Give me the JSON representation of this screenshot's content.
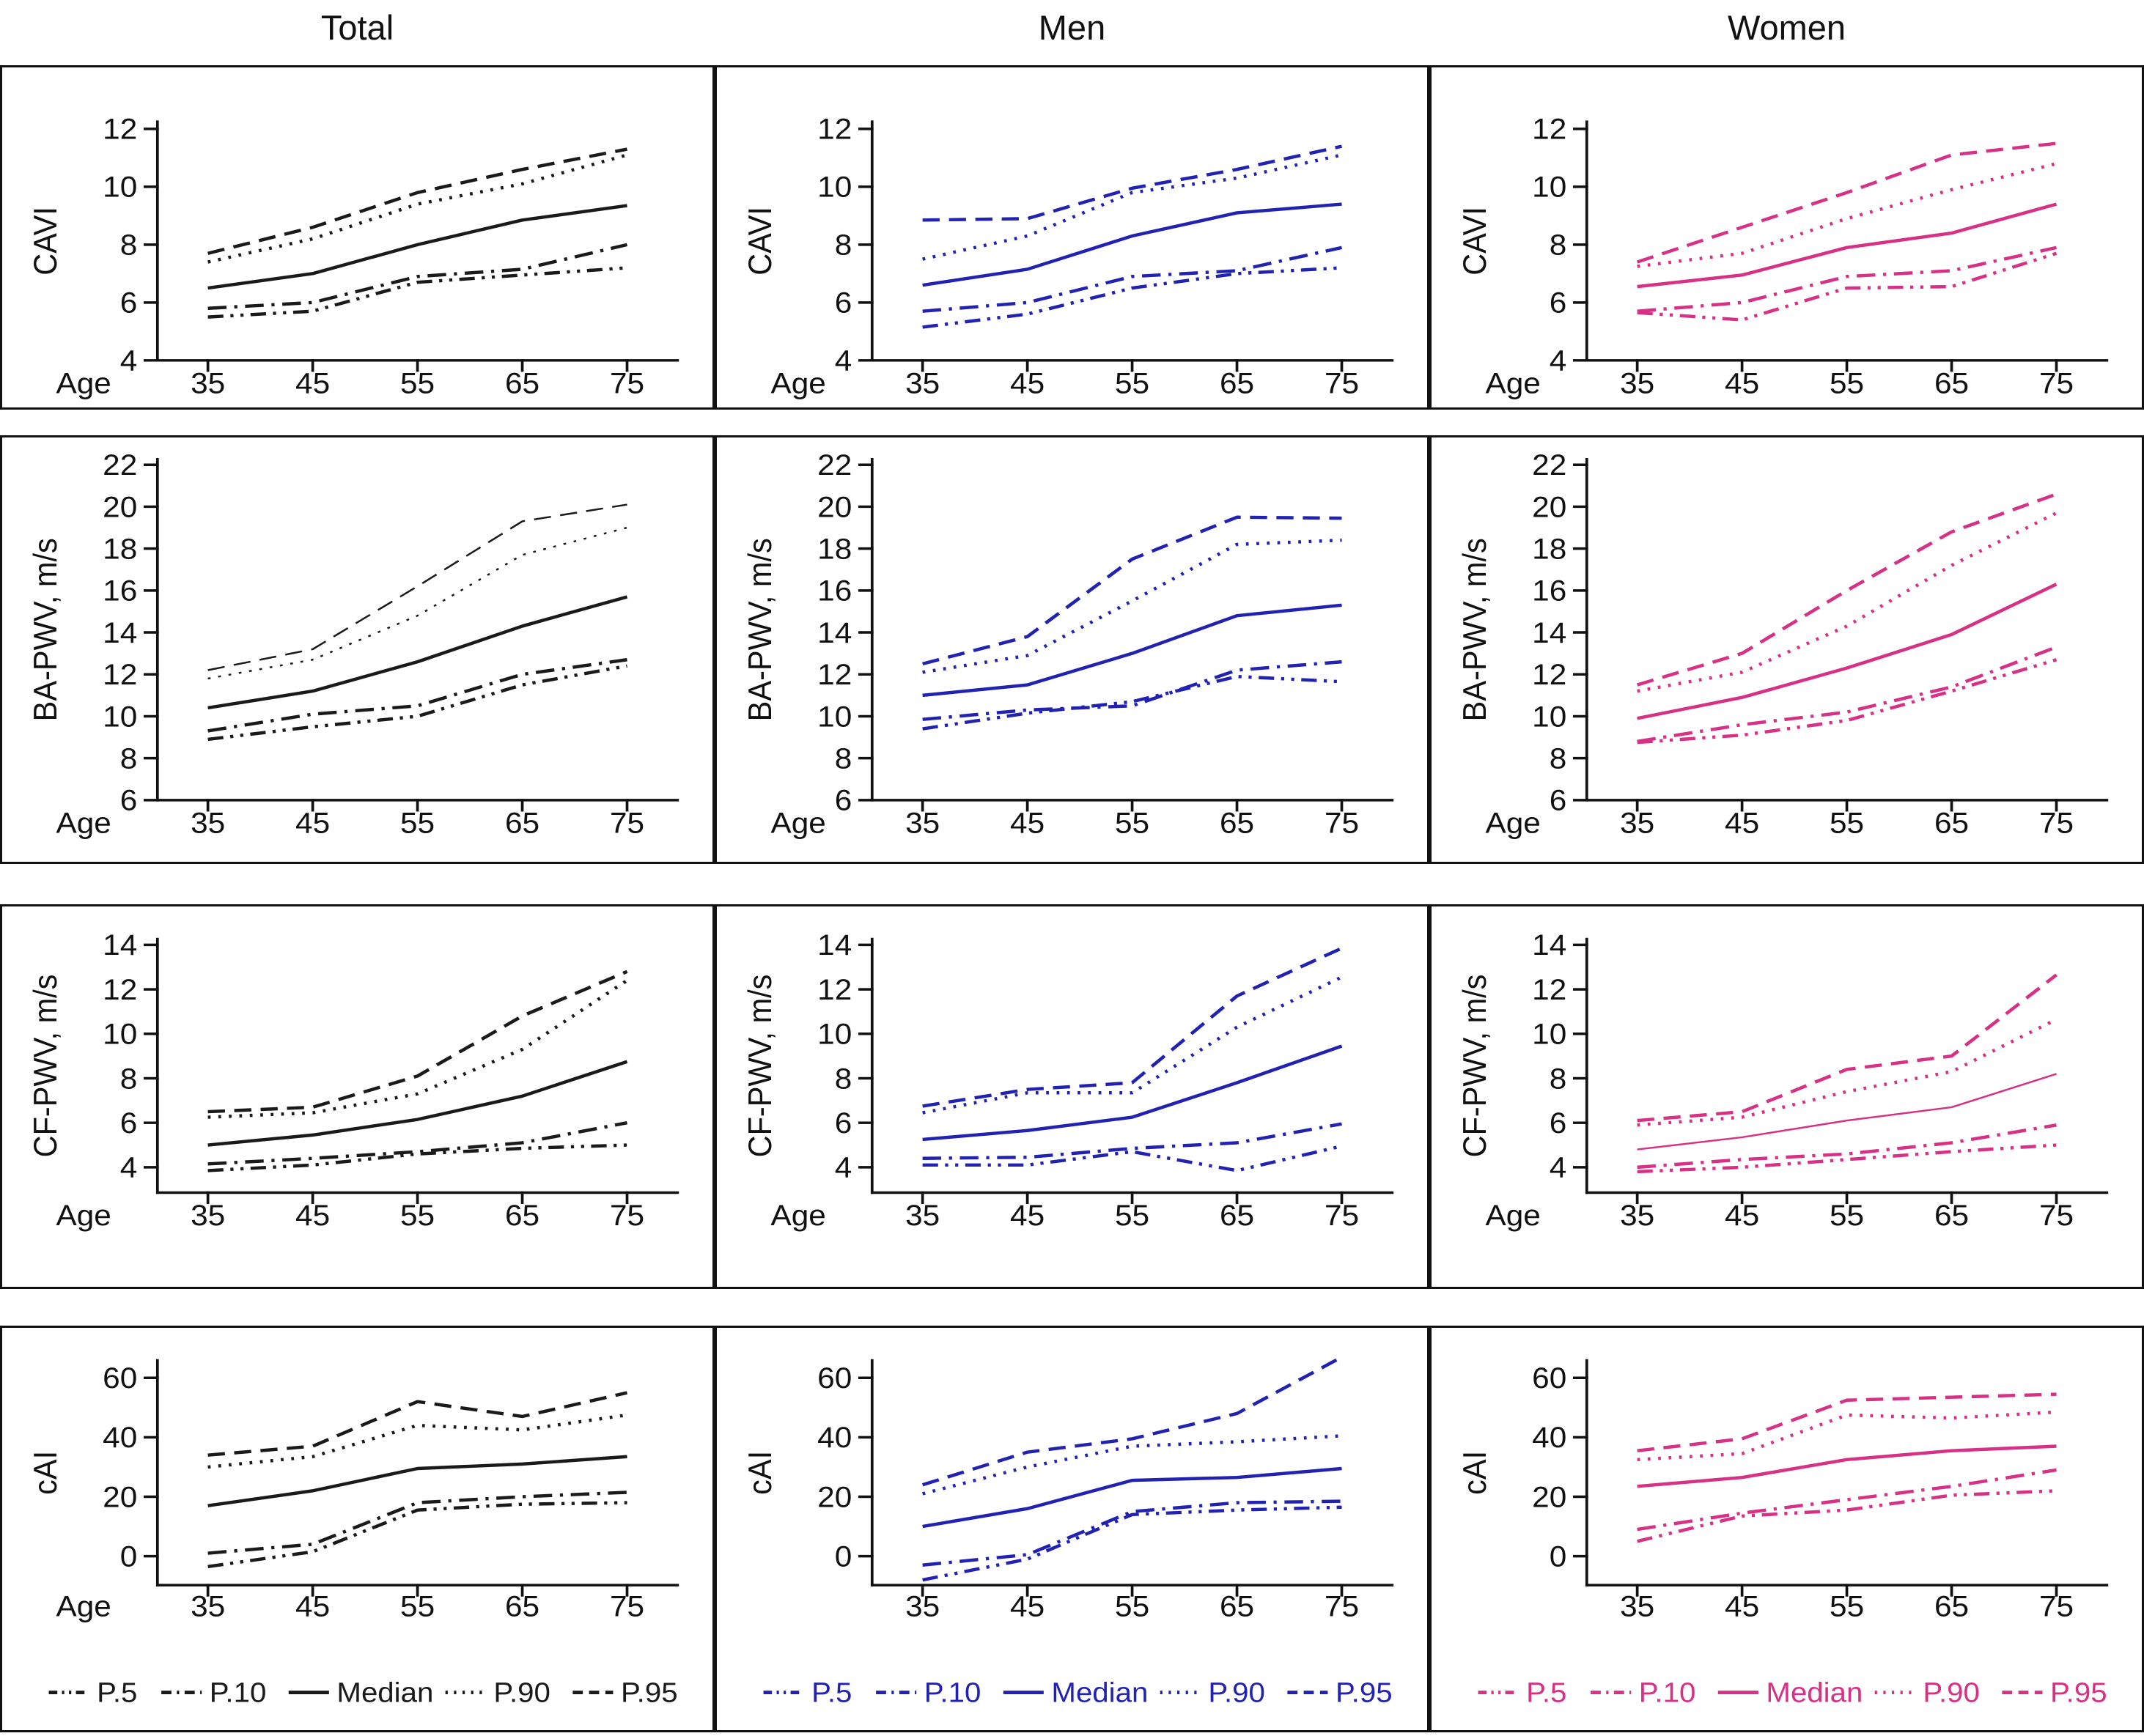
{
  "columns": [
    {
      "title": "Total",
      "color": "#1a1a1a"
    },
    {
      "title": "Men",
      "color": "#2222b2"
    },
    {
      "title": "Women",
      "color": "#d63184"
    }
  ],
  "x_axis": {
    "label": "Age",
    "ticks": [
      35,
      45,
      55,
      65,
      75
    ]
  },
  "legend": {
    "items": [
      {
        "label": "P.5",
        "style": "dash-dot-dot"
      },
      {
        "label": "P.10",
        "style": "dash-dot"
      },
      {
        "label": "Median",
        "style": "solid"
      },
      {
        "label": "P.90",
        "style": "dotted"
      },
      {
        "label": "P.95",
        "style": "dashed"
      }
    ]
  },
  "chart_data": [
    {
      "type": "line",
      "column": "Total",
      "measure": "CAVI",
      "ylabel": "CAVI",
      "yticks": [
        4,
        6,
        8,
        10,
        12
      ],
      "ylim": [
        4,
        12.4
      ],
      "x": [
        35,
        45,
        55,
        65,
        75
      ],
      "xlabel": "Age",
      "show_age_label": true,
      "show_legend": false,
      "series": [
        {
          "name": "P.5",
          "style": "dash-dot-dot",
          "values": [
            5.5,
            5.7,
            6.7,
            6.95,
            7.2
          ]
        },
        {
          "name": "P.10",
          "style": "dash-dot",
          "values": [
            5.8,
            6.0,
            6.9,
            7.15,
            8.0
          ]
        },
        {
          "name": "Median",
          "style": "solid",
          "values": [
            6.5,
            7.0,
            8.0,
            8.85,
            9.35
          ]
        },
        {
          "name": "P.90",
          "style": "dotted",
          "values": [
            7.4,
            8.2,
            9.4,
            10.1,
            11.1
          ]
        },
        {
          "name": "P.95",
          "style": "dashed",
          "values": [
            7.7,
            8.6,
            9.8,
            10.6,
            11.3
          ]
        }
      ]
    },
    {
      "type": "line",
      "column": "Men",
      "measure": "CAVI",
      "ylabel": "CAVI",
      "yticks": [
        4,
        6,
        8,
        10,
        12
      ],
      "ylim": [
        4,
        12.4
      ],
      "x": [
        35,
        45,
        55,
        65,
        75
      ],
      "xlabel": "Age",
      "show_age_label": true,
      "show_legend": false,
      "series": [
        {
          "name": "P.5",
          "style": "dash-dot-dot",
          "values": [
            5.15,
            5.6,
            6.5,
            7.0,
            7.2
          ]
        },
        {
          "name": "P.10",
          "style": "dash-dot",
          "values": [
            5.7,
            6.0,
            6.9,
            7.1,
            7.9
          ]
        },
        {
          "name": "Median",
          "style": "solid",
          "values": [
            6.6,
            7.15,
            8.3,
            9.1,
            9.4
          ]
        },
        {
          "name": "P.90",
          "style": "dotted",
          "values": [
            7.5,
            8.3,
            9.8,
            10.3,
            11.1
          ]
        },
        {
          "name": "P.95",
          "style": "dashed",
          "values": [
            8.85,
            8.9,
            9.95,
            10.6,
            11.4
          ]
        }
      ]
    },
    {
      "type": "line",
      "column": "Women",
      "measure": "CAVI",
      "ylabel": "CAVI",
      "yticks": [
        4,
        6,
        8,
        10,
        12
      ],
      "ylim": [
        4,
        12.4
      ],
      "x": [
        35,
        45,
        55,
        65,
        75
      ],
      "xlabel": "Age",
      "show_age_label": true,
      "show_legend": false,
      "series": [
        {
          "name": "P.5",
          "style": "dash-dot-dot",
          "values": [
            5.65,
            5.4,
            6.5,
            6.55,
            7.7
          ]
        },
        {
          "name": "P.10",
          "style": "dash-dot",
          "values": [
            5.7,
            6.0,
            6.9,
            7.1,
            7.9
          ]
        },
        {
          "name": "Median",
          "style": "solid",
          "values": [
            6.55,
            6.95,
            7.9,
            8.4,
            9.4
          ]
        },
        {
          "name": "P.90",
          "style": "dotted",
          "values": [
            7.25,
            7.7,
            8.9,
            9.9,
            10.8
          ]
        },
        {
          "name": "P.95",
          "style": "dashed",
          "values": [
            7.4,
            8.6,
            9.8,
            11.1,
            11.5
          ]
        }
      ]
    },
    {
      "type": "line",
      "column": "Total",
      "measure": "BA-PWV",
      "ylabel": "BA-PWV, m/s",
      "yticks": [
        6,
        8,
        10,
        12,
        14,
        16,
        18,
        20,
        22
      ],
      "ylim": [
        6,
        22.4
      ],
      "x": [
        35,
        45,
        55,
        65,
        75
      ],
      "xlabel": "Age",
      "show_age_label": true,
      "show_legend": false,
      "series": [
        {
          "name": "P.5",
          "style": "dash-dot-dot",
          "values": [
            8.9,
            9.5,
            10.0,
            11.5,
            12.4
          ]
        },
        {
          "name": "P.10",
          "style": "dash-dot",
          "values": [
            9.3,
            10.1,
            10.5,
            12.0,
            12.7
          ]
        },
        {
          "name": "Median",
          "style": "solid",
          "values": [
            10.4,
            11.2,
            12.6,
            14.3,
            15.7
          ]
        },
        {
          "name": "P.90",
          "style": "dotted",
          "weight": "thin",
          "values": [
            11.8,
            12.7,
            14.8,
            17.7,
            19.0
          ]
        },
        {
          "name": "P.95",
          "style": "dashed",
          "weight": "thin",
          "values": [
            12.2,
            13.2,
            16.2,
            19.3,
            20.1
          ]
        }
      ]
    },
    {
      "type": "line",
      "column": "Men",
      "measure": "BA-PWV",
      "ylabel": "BA-PWV, m/s",
      "yticks": [
        6,
        8,
        10,
        12,
        14,
        16,
        18,
        20,
        22
      ],
      "ylim": [
        6,
        22.4
      ],
      "x": [
        35,
        45,
        55,
        65,
        75
      ],
      "xlabel": "Age",
      "show_age_label": true,
      "show_legend": false,
      "series": [
        {
          "name": "P.5",
          "style": "dash-dot-dot",
          "values": [
            9.4,
            10.15,
            10.7,
            11.9,
            11.65
          ]
        },
        {
          "name": "P.10",
          "style": "dash-dot",
          "values": [
            9.85,
            10.3,
            10.5,
            12.2,
            12.6
          ]
        },
        {
          "name": "Median",
          "style": "solid",
          "values": [
            11.0,
            11.5,
            13.0,
            14.8,
            15.3
          ]
        },
        {
          "name": "P.90",
          "style": "dotted",
          "values": [
            12.1,
            12.9,
            15.5,
            18.2,
            18.4
          ]
        },
        {
          "name": "P.95",
          "style": "dashed",
          "values": [
            12.5,
            13.8,
            17.5,
            19.5,
            19.45
          ]
        }
      ]
    },
    {
      "type": "line",
      "column": "Women",
      "measure": "BA-PWV",
      "ylabel": "BA-PWV, m/s",
      "yticks": [
        6,
        8,
        10,
        12,
        14,
        16,
        18,
        20,
        22
      ],
      "ylim": [
        6,
        22.4
      ],
      "x": [
        35,
        45,
        55,
        65,
        75
      ],
      "xlabel": "Age",
      "show_age_label": true,
      "show_legend": false,
      "series": [
        {
          "name": "P.5",
          "style": "dash-dot-dot",
          "values": [
            8.75,
            9.1,
            9.8,
            11.2,
            12.7
          ]
        },
        {
          "name": "P.10",
          "style": "dash-dot",
          "values": [
            8.8,
            9.6,
            10.2,
            11.4,
            13.3
          ]
        },
        {
          "name": "Median",
          "style": "solid",
          "values": [
            9.9,
            10.9,
            12.3,
            13.9,
            16.3
          ]
        },
        {
          "name": "P.90",
          "style": "dotted",
          "values": [
            11.2,
            12.1,
            14.3,
            17.2,
            19.7
          ]
        },
        {
          "name": "P.95",
          "style": "dashed",
          "values": [
            11.5,
            13.0,
            16.0,
            18.8,
            20.6
          ]
        }
      ]
    },
    {
      "type": "line",
      "column": "Total",
      "measure": "CF-PWV",
      "ylabel": "CF-PWV, m/s",
      "yticks": [
        4,
        6,
        8,
        10,
        12,
        14
      ],
      "ylim": [
        2.9,
        14.4
      ],
      "x": [
        35,
        45,
        55,
        65,
        75
      ],
      "xlabel": "Age",
      "show_age_label": true,
      "show_legend": false,
      "series": [
        {
          "name": "P.5",
          "style": "dash-dot-dot",
          "values": [
            3.85,
            4.1,
            4.6,
            4.85,
            5.0
          ]
        },
        {
          "name": "P.10",
          "style": "dash-dot",
          "values": [
            4.15,
            4.4,
            4.7,
            5.1,
            6.0
          ]
        },
        {
          "name": "Median",
          "style": "solid",
          "values": [
            5.0,
            5.45,
            6.15,
            7.2,
            8.75
          ]
        },
        {
          "name": "P.90",
          "style": "dotted",
          "values": [
            6.25,
            6.45,
            7.3,
            9.3,
            12.4
          ]
        },
        {
          "name": "P.95",
          "style": "dashed",
          "values": [
            6.5,
            6.7,
            8.1,
            10.8,
            12.8
          ]
        }
      ]
    },
    {
      "type": "line",
      "column": "Men",
      "measure": "CF-PWV",
      "ylabel": "CF-PWV, m/s",
      "yticks": [
        4,
        6,
        8,
        10,
        12,
        14
      ],
      "ylim": [
        2.9,
        14.4
      ],
      "x": [
        35,
        45,
        55,
        65,
        75
      ],
      "xlabel": "Age",
      "show_age_label": true,
      "show_legend": false,
      "series": [
        {
          "name": "P.5",
          "style": "dash-dot-dot",
          "values": [
            4.1,
            4.1,
            4.7,
            3.85,
            4.95
          ]
        },
        {
          "name": "P.10",
          "style": "dash-dot",
          "values": [
            4.4,
            4.45,
            4.85,
            5.1,
            5.95
          ]
        },
        {
          "name": "Median",
          "style": "solid",
          "values": [
            5.25,
            5.65,
            6.25,
            7.8,
            9.45
          ]
        },
        {
          "name": "P.90",
          "style": "dotted",
          "values": [
            6.45,
            7.35,
            7.35,
            10.3,
            12.55
          ]
        },
        {
          "name": "P.95",
          "style": "dashed",
          "values": [
            6.75,
            7.5,
            7.8,
            11.7,
            13.85
          ]
        }
      ]
    },
    {
      "type": "line",
      "column": "Women",
      "measure": "CF-PWV",
      "ylabel": "CF-PWV, m/s",
      "yticks": [
        4,
        6,
        8,
        10,
        12,
        14
      ],
      "ylim": [
        2.9,
        14.4
      ],
      "x": [
        35,
        45,
        55,
        65,
        75
      ],
      "xlabel": "Age",
      "show_age_label": true,
      "show_legend": false,
      "series": [
        {
          "name": "P.5",
          "style": "dash-dot-dot",
          "values": [
            3.8,
            4.0,
            4.35,
            4.7,
            5.0
          ]
        },
        {
          "name": "P.10",
          "style": "dash-dot",
          "values": [
            4.0,
            4.35,
            4.6,
            5.1,
            5.9
          ]
        },
        {
          "name": "Median",
          "style": "solid",
          "weight": "thin",
          "values": [
            4.8,
            5.35,
            6.1,
            6.7,
            8.2
          ]
        },
        {
          "name": "P.90",
          "style": "dotted",
          "values": [
            5.9,
            6.25,
            7.4,
            8.3,
            10.65
          ]
        },
        {
          "name": "P.95",
          "style": "dashed",
          "values": [
            6.1,
            6.5,
            8.4,
            9.0,
            12.65
          ]
        }
      ]
    },
    {
      "type": "line",
      "column": "Total",
      "measure": "cAI",
      "ylabel": "cAI",
      "yticks": [
        0,
        20,
        40,
        60
      ],
      "ylim": [
        -12,
        68
      ],
      "x": [
        35,
        45,
        55,
        65,
        75
      ],
      "xlabel": "Age",
      "show_age_label": true,
      "show_legend": true,
      "series": [
        {
          "name": "P.5",
          "style": "dash-dot-dot",
          "values": [
            -3.5,
            1.5,
            15.5,
            17.5,
            18.0
          ]
        },
        {
          "name": "P.10",
          "style": "dash-dot",
          "values": [
            1.0,
            4.0,
            18.0,
            20.0,
            21.5
          ]
        },
        {
          "name": "Median",
          "style": "solid",
          "values": [
            17.0,
            22.0,
            29.5,
            31.0,
            33.5
          ]
        },
        {
          "name": "P.90",
          "style": "dotted",
          "values": [
            30.0,
            33.5,
            44.0,
            42.5,
            47.5
          ]
        },
        {
          "name": "P.95",
          "style": "dashed",
          "values": [
            34.0,
            37.0,
            52.0,
            47.0,
            55.0
          ]
        }
      ]
    },
    {
      "type": "line",
      "column": "Men",
      "measure": "cAI",
      "ylabel": "cAI",
      "yticks": [
        0,
        20,
        40,
        60
      ],
      "ylim": [
        -12,
        68
      ],
      "x": [
        35,
        45,
        55,
        65,
        75
      ],
      "xlabel": "Age",
      "show_age_label": false,
      "show_legend": true,
      "series": [
        {
          "name": "P.5",
          "style": "dash-dot-dot",
          "values": [
            -8.0,
            -1.0,
            14.0,
            15.5,
            16.5
          ]
        },
        {
          "name": "P.10",
          "style": "dash-dot",
          "values": [
            -3.0,
            0.5,
            15.0,
            18.0,
            18.5
          ]
        },
        {
          "name": "Median",
          "style": "solid",
          "values": [
            10.0,
            16.0,
            25.5,
            26.5,
            29.5
          ]
        },
        {
          "name": "P.90",
          "style": "dotted",
          "values": [
            21.0,
            30.0,
            37.0,
            38.5,
            40.5
          ]
        },
        {
          "name": "P.95",
          "style": "dashed",
          "values": [
            24.0,
            35.0,
            39.5,
            48.0,
            67.0
          ]
        }
      ]
    },
    {
      "type": "line",
      "column": "Women",
      "measure": "cAI",
      "ylabel": "cAI",
      "yticks": [
        0,
        20,
        40,
        60
      ],
      "ylim": [
        -12,
        68
      ],
      "x": [
        35,
        45,
        55,
        65,
        75
      ],
      "xlabel": "Age",
      "show_age_label": false,
      "show_legend": true,
      "series": [
        {
          "name": "P.5",
          "style": "dash-dot-dot",
          "values": [
            5.0,
            13.5,
            15.5,
            20.5,
            22.0
          ]
        },
        {
          "name": "P.10",
          "style": "dash-dot",
          "values": [
            9.0,
            14.5,
            19.0,
            23.5,
            29.0
          ]
        },
        {
          "name": "Median",
          "style": "solid",
          "values": [
            23.5,
            26.5,
            32.5,
            35.5,
            37.0
          ]
        },
        {
          "name": "P.90",
          "style": "dotted",
          "values": [
            32.5,
            34.5,
            47.5,
            46.5,
            48.5
          ]
        },
        {
          "name": "P.95",
          "style": "dashed",
          "values": [
            35.5,
            39.5,
            52.5,
            53.5,
            54.5
          ]
        }
      ]
    }
  ]
}
